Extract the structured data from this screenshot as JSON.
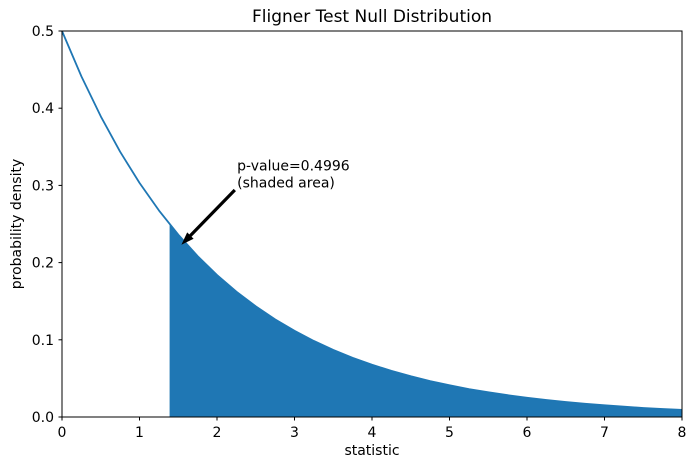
{
  "chart_data": {
    "type": "area",
    "title": "Fligner Test Null Distribution",
    "xlabel": "statistic",
    "ylabel": "probability density",
    "xlim": [
      0,
      8
    ],
    "ylim": [
      0,
      0.5
    ],
    "grid": false,
    "legend": null,
    "background_color": "#ffffff",
    "spine_color": "#000000",
    "line_color": "#1f77b4",
    "fill_color": "#1f77b4",
    "distribution_note": "chi-squared null distribution (df=2), pdf(x) = 0.5*exp(-x/2)",
    "xticks": {
      "values": [
        0,
        1,
        2,
        3,
        4,
        5,
        6,
        7,
        8
      ],
      "labels": [
        "0",
        "1",
        "2",
        "3",
        "4",
        "5",
        "6",
        "7",
        "8"
      ]
    },
    "yticks": {
      "values": [
        0.0,
        0.1,
        0.2,
        0.3,
        0.4,
        0.5
      ],
      "labels": [
        "0.0",
        "0.1",
        "0.2",
        "0.3",
        "0.4",
        "0.5"
      ]
    },
    "curve": {
      "x": [
        0,
        0.25,
        0.5,
        0.75,
        1.0,
        1.25,
        1.5,
        1.75,
        2.0,
        2.25,
        2.5,
        2.75,
        3.0,
        3.25,
        3.5,
        3.75,
        4.0,
        4.25,
        4.5,
        4.75,
        5.0,
        5.25,
        5.5,
        5.75,
        6.0,
        6.25,
        6.5,
        6.75,
        7.0,
        7.25,
        7.5,
        7.75,
        8.0
      ],
      "y": [
        0.5,
        0.4412,
        0.3894,
        0.3436,
        0.3033,
        0.2676,
        0.2362,
        0.2084,
        0.1839,
        0.1623,
        0.1433,
        0.1264,
        0.1116,
        0.0985,
        0.0869,
        0.0767,
        0.0677,
        0.0597,
        0.0527,
        0.0465,
        0.041,
        0.0362,
        0.032,
        0.0282,
        0.0249,
        0.022,
        0.0194,
        0.0171,
        0.0151,
        0.0133,
        0.0117,
        0.0104,
        0.0092
      ]
    },
    "shade": {
      "from": 1.3879,
      "to": 8,
      "p_value": 0.4996,
      "statistic": 1.3879
    },
    "annotation": {
      "line1": "p-value=0.4996",
      "line2": "(shaded area)",
      "text_xy": [
        2.26,
        0.319
      ],
      "arrow_tail_xy": [
        2.23,
        0.294
      ],
      "arrow_tip_xy": [
        1.54,
        0.223
      ],
      "arrow_color": "#000000"
    }
  }
}
